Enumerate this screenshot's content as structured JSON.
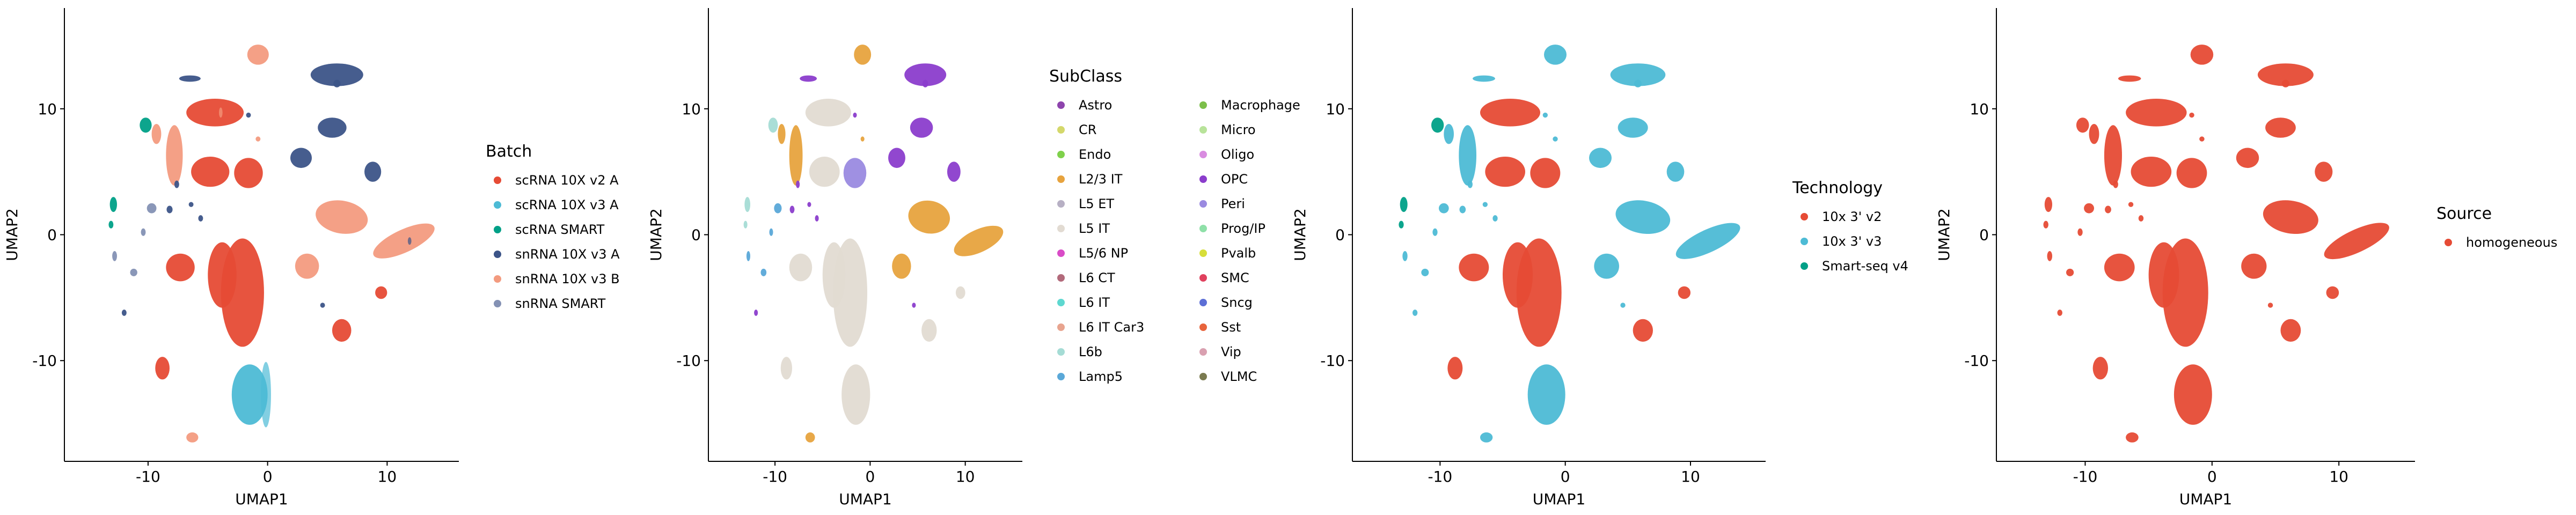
{
  "figure": {
    "background": "#ffffff"
  },
  "chart_data": [
    {
      "type": "scatter",
      "title": "",
      "xlabel": "UMAP1",
      "ylabel": "UMAP2",
      "xlim": [
        -17,
        16
      ],
      "ylim": [
        -18,
        18
      ],
      "xticks": [
        -10,
        0,
        10
      ],
      "yticks": [
        -10,
        0,
        10
      ],
      "grid": false,
      "legend": {
        "title": "Batch",
        "placement": "right",
        "columns": 1,
        "entries": [
          {
            "label": "scRNA 10X v2 A",
            "color": "#E64B35"
          },
          {
            "label": "scRNA 10X v3 A",
            "color": "#4DBBD5"
          },
          {
            "label": "scRNA SMART",
            "color": "#00A087"
          },
          {
            "label": "snRNA 10X v3 A",
            "color": "#3C5488"
          },
          {
            "label": "snRNA 10X v3 B",
            "color": "#F39B7F"
          },
          {
            "label": "snRNA SMART",
            "color": "#8491B4"
          }
        ]
      },
      "colors": {
        "main": 0,
        "rim": 1,
        "upper": 3,
        "right": 4,
        "smart": 2,
        "smart2": 5,
        "mid": 0
      }
    },
    {
      "type": "scatter",
      "title": "",
      "xlabel": "UMAP1",
      "ylabel": "UMAP2",
      "xlim": [
        -17,
        16
      ],
      "ylim": [
        -18,
        18
      ],
      "xticks": [
        -10,
        0,
        10
      ],
      "yticks": [
        -10,
        0,
        10
      ],
      "grid": false,
      "legend": {
        "title": "SubClass",
        "placement": "right",
        "columns": 2,
        "entries": [
          {
            "label": "Astro",
            "color": "#8E44AD"
          },
          {
            "label": "CR",
            "color": "#D4D86B"
          },
          {
            "label": "Endo",
            "color": "#7FD14B"
          },
          {
            "label": "L2/3 IT",
            "color": "#E7A33E"
          },
          {
            "label": "L5 ET",
            "color": "#B7B0C4"
          },
          {
            "label": "L5 IT",
            "color": "#E2DBD2"
          },
          {
            "label": "L5/6 NP",
            "color": "#D94CC7"
          },
          {
            "label": "L6 CT",
            "color": "#B26A7B"
          },
          {
            "label": "L6 IT",
            "color": "#5ED8D0"
          },
          {
            "label": "L6 IT Car3",
            "color": "#E8A48F"
          },
          {
            "label": "L6b",
            "color": "#A5DCD5"
          },
          {
            "label": "Lamp5",
            "color": "#5AA8D8"
          },
          {
            "label": "Macrophage",
            "color": "#7CBF4A"
          },
          {
            "label": "Micro",
            "color": "#B8E39A"
          },
          {
            "label": "Oligo",
            "color": "#D98CE0"
          },
          {
            "label": "OPC",
            "color": "#8B3DCC"
          },
          {
            "label": "Peri",
            "color": "#9A8AE0"
          },
          {
            "label": "Prog/IP",
            "color": "#8FE0A8"
          },
          {
            "label": "Pvalb",
            "color": "#D7DE3A"
          },
          {
            "label": "SMC",
            "color": "#E0415E"
          },
          {
            "label": "Sncg",
            "color": "#5C6FD6"
          },
          {
            "label": "Sst",
            "color": "#E8643C"
          },
          {
            "label": "Vip",
            "color": "#D9A0B0"
          },
          {
            "label": "VLMC",
            "color": "#7A7A50"
          }
        ]
      },
      "colors": {
        "main": 5,
        "rim": 5,
        "upper": 15,
        "right": 3,
        "smart": 10,
        "smart2": 11,
        "mid": 16
      }
    },
    {
      "type": "scatter",
      "title": "",
      "xlabel": "UMAP1",
      "ylabel": "UMAP2",
      "xlim": [
        -17,
        16
      ],
      "ylim": [
        -18,
        18
      ],
      "xticks": [
        -10,
        0,
        10
      ],
      "yticks": [
        -10,
        0,
        10
      ],
      "grid": false,
      "legend": {
        "title": "Technology",
        "placement": "right",
        "columns": 1,
        "entries": [
          {
            "label": "10x 3' v2",
            "color": "#E64B35"
          },
          {
            "label": "10x 3' v3",
            "color": "#4DBBD5"
          },
          {
            "label": "Smart-seq v4",
            "color": "#00A087"
          }
        ]
      },
      "colors": {
        "main": 0,
        "rim": 1,
        "upper": 1,
        "right": 1,
        "smart": 2,
        "smart2": 1,
        "mid": 0
      }
    },
    {
      "type": "scatter",
      "title": "",
      "xlabel": "UMAP1",
      "ylabel": "UMAP2",
      "xlim": [
        -17,
        16
      ],
      "ylim": [
        -18,
        18
      ],
      "xticks": [
        -10,
        0,
        10
      ],
      "yticks": [
        -10,
        0,
        10
      ],
      "grid": false,
      "legend": {
        "title": "Source",
        "placement": "right",
        "columns": 1,
        "entries": [
          {
            "label": "homogeneous",
            "color": "#E64B35"
          }
        ]
      },
      "colors": {
        "main": 0,
        "rim": 0,
        "upper": 0,
        "right": 0,
        "smart": 0,
        "smart2": 0,
        "mid": 0
      }
    }
  ],
  "clusters": [
    {
      "cx": -2.1,
      "cy": -4.6,
      "rx": 1.8,
      "ry": 4.3,
      "role": "main"
    },
    {
      "cx": -3.8,
      "cy": -3.2,
      "rx": 1.2,
      "ry": 2.6,
      "role": "main"
    },
    {
      "cx": -7.3,
      "cy": -2.6,
      "rx": 1.2,
      "ry": 1.1,
      "role": "main"
    },
    {
      "cx": -1.5,
      "cy": -12.7,
      "rx": 1.5,
      "ry": 2.4,
      "role": "rim"
    },
    {
      "cx": -8.8,
      "cy": -10.6,
      "rx": 0.6,
      "ry": 0.9,
      "role": "main"
    },
    {
      "cx": -6.3,
      "cy": -16.1,
      "rx": 0.5,
      "ry": 0.4,
      "role": "right"
    },
    {
      "cx": -4.8,
      "cy": 5.0,
      "rx": 1.6,
      "ry": 1.2,
      "role": "main"
    },
    {
      "cx": -1.6,
      "cy": 4.9,
      "rx": 1.2,
      "ry": 1.2,
      "role": "mid"
    },
    {
      "cx": -4.4,
      "cy": 9.7,
      "rx": 2.4,
      "ry": 1.1,
      "role": "main"
    },
    {
      "cx": -7.8,
      "cy": 6.3,
      "rx": 0.7,
      "ry": 2.4,
      "role": "right"
    },
    {
      "cx": -9.3,
      "cy": 8.0,
      "rx": 0.4,
      "ry": 0.8,
      "role": "right"
    },
    {
      "cx": -0.8,
      "cy": 14.3,
      "rx": 0.9,
      "ry": 0.8,
      "role": "right"
    },
    {
      "cx": 5.8,
      "cy": 12.7,
      "rx": 2.2,
      "ry": 0.9,
      "role": "upper"
    },
    {
      "cx": 5.4,
      "cy": 8.5,
      "rx": 1.2,
      "ry": 0.8,
      "role": "upper"
    },
    {
      "cx": 2.8,
      "cy": 6.1,
      "rx": 0.9,
      "ry": 0.8,
      "role": "upper"
    },
    {
      "cx": 8.8,
      "cy": 5.0,
      "rx": 0.7,
      "ry": 0.8,
      "role": "upper"
    },
    {
      "cx": 11.4,
      "cy": -0.5,
      "rx": 2.8,
      "ry": 0.9,
      "role": "right",
      "rot": -25
    },
    {
      "cx": 6.2,
      "cy": 1.4,
      "rx": 2.2,
      "ry": 1.3,
      "role": "right",
      "rot": 10
    },
    {
      "cx": 3.3,
      "cy": -2.5,
      "rx": 1.0,
      "ry": 1.0,
      "role": "right"
    },
    {
      "cx": 6.2,
      "cy": -7.6,
      "rx": 0.8,
      "ry": 0.9,
      "role": "main"
    },
    {
      "cx": 9.5,
      "cy": -4.6,
      "rx": 0.5,
      "ry": 0.5,
      "role": "main"
    },
    {
      "cx": 5.8,
      "cy": 12.0,
      "rx": 0.3,
      "ry": 0.3,
      "role": "upper"
    },
    {
      "cx": -6.5,
      "cy": 12.4,
      "rx": 0.9,
      "ry": 0.25,
      "role": "upper"
    },
    {
      "cx": -10.2,
      "cy": 8.7,
      "rx": 0.5,
      "ry": 0.6,
      "role": "smart"
    },
    {
      "cx": -12.9,
      "cy": 2.4,
      "rx": 0.3,
      "ry": 0.6,
      "role": "smart"
    },
    {
      "cx": -9.7,
      "cy": 2.1,
      "rx": 0.4,
      "ry": 0.4,
      "role": "smart2"
    },
    {
      "cx": -12.8,
      "cy": -1.7,
      "rx": 0.2,
      "ry": 0.4,
      "role": "smart2"
    },
    {
      "cx": -11.2,
      "cy": -3.0,
      "rx": 0.3,
      "ry": 0.3,
      "role": "smart2"
    },
    {
      "cx": -10.4,
      "cy": 0.2,
      "rx": 0.2,
      "ry": 0.3,
      "role": "smart2"
    },
    {
      "cx": -13.1,
      "cy": 0.8,
      "rx": 0.2,
      "ry": 0.3,
      "role": "smart"
    },
    {
      "cx": -8.2,
      "cy": 2.0,
      "rx": 0.25,
      "ry": 0.3,
      "role": "upper"
    },
    {
      "cx": -7.6,
      "cy": 4.0,
      "rx": 0.2,
      "ry": 0.3,
      "role": "upper"
    },
    {
      "cx": -12.0,
      "cy": -6.2,
      "rx": 0.2,
      "ry": 0.25,
      "role": "upper"
    },
    {
      "cx": -1.6,
      "cy": 9.5,
      "rx": 0.2,
      "ry": 0.2,
      "role": "upper"
    },
    {
      "cx": -6.4,
      "cy": 2.4,
      "rx": 0.2,
      "ry": 0.2,
      "role": "upper"
    },
    {
      "cx": -5.6,
      "cy": 1.3,
      "rx": 0.2,
      "ry": 0.25,
      "role": "upper"
    },
    {
      "cx": 4.6,
      "cy": -5.6,
      "rx": 0.2,
      "ry": 0.2,
      "role": "upper"
    },
    {
      "cx": -0.8,
      "cy": 7.6,
      "rx": 0.2,
      "ry": 0.2,
      "role": "right"
    }
  ]
}
